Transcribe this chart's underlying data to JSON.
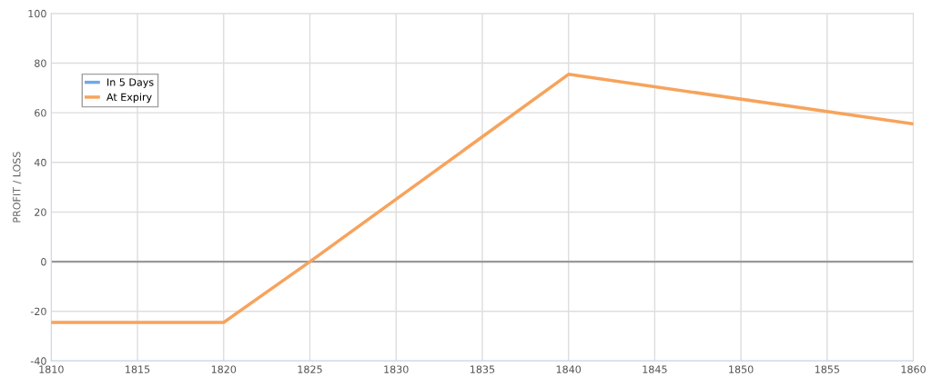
{
  "chart_data": {
    "type": "line",
    "ylabel": "PROFIT / LOSS",
    "x": [
      1810,
      1820,
      1825,
      1840,
      1860
    ],
    "series": [
      {
        "name": "In 5 Days",
        "color": "#6fa8e6",
        "values": [
          null,
          null,
          null,
          null,
          null
        ]
      },
      {
        "name": "At Expiry",
        "color": "#f7a35c",
        "values": [
          -24.5,
          -24.5,
          0,
          75.5,
          55.5
        ]
      }
    ],
    "xlim": [
      1810,
      1860
    ],
    "xticks": [
      1810,
      1815,
      1820,
      1825,
      1830,
      1835,
      1840,
      1845,
      1850,
      1855,
      1860
    ],
    "ylim": [
      -40,
      100
    ],
    "yticks": [
      -40,
      -20,
      0,
      20,
      40,
      60,
      80,
      100
    ],
    "ref_lines": [
      {
        "axis": "y",
        "value": 0,
        "color": "#999999"
      }
    ],
    "grid": true,
    "legend": "top left",
    "marker": "none",
    "line_style": "solid"
  }
}
